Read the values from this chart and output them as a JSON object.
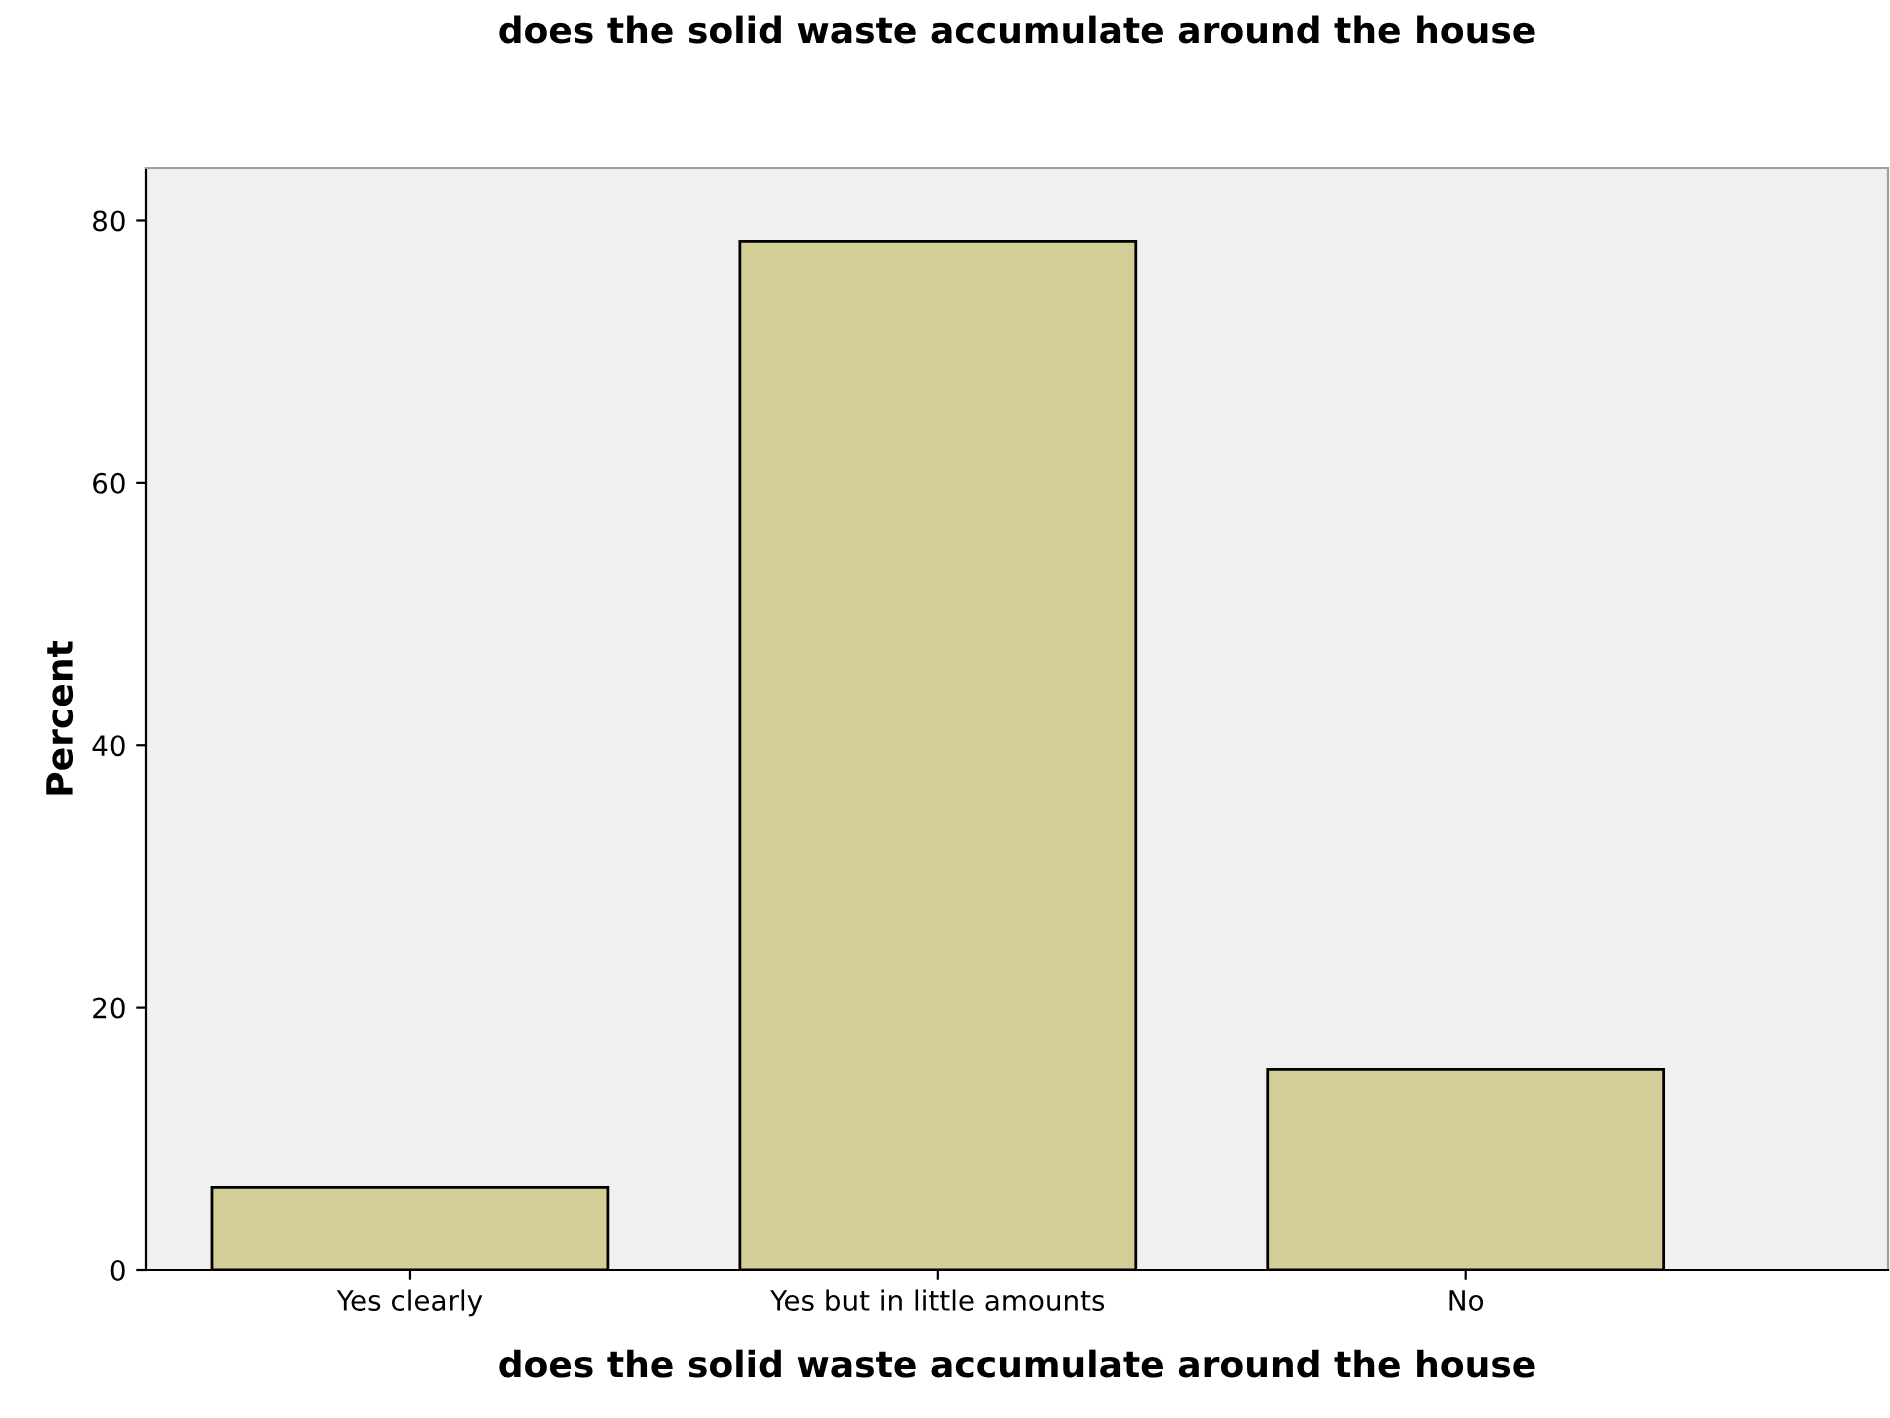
{
  "chart_data": {
    "type": "bar",
    "title": "does the solid waste accumulate around the house",
    "xlabel": "does the solid waste accumulate around the house",
    "ylabel": "Percent",
    "categories": [
      "Yes clearly",
      "Yes but in little amounts",
      "No"
    ],
    "values": [
      6.3,
      78.4,
      15.3
    ],
    "color": "#d3cd97",
    "ylim": [
      0,
      84
    ],
    "yticks": [
      0,
      20,
      40,
      60,
      80
    ],
    "grid": false,
    "legend": false
  }
}
